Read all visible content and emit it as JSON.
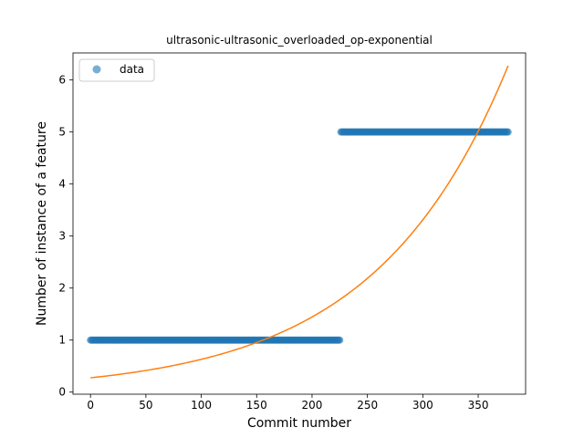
{
  "chart_data": {
    "type": "scatter",
    "title": "ultrasonic-ultrasonic_overloaded_op-exponential",
    "xlabel": "Commit number",
    "ylabel": "Number of instance of a feature",
    "xlim": [
      -15.8,
      392.8
    ],
    "ylim": [
      -0.04,
      6.52
    ],
    "xticks": [
      0,
      50,
      100,
      150,
      200,
      250,
      300,
      350
    ],
    "yticks": [
      0,
      1,
      2,
      3,
      4,
      5,
      6
    ],
    "legend": {
      "placement": "top-left",
      "entries": [
        "data"
      ]
    },
    "series": [
      {
        "name": "data",
        "kind": "points",
        "color": "#1f77b4",
        "segments": [
          {
            "x_start": 0,
            "x_end": 225,
            "y": 1
          },
          {
            "x_start": 226,
            "x_end": 377,
            "y": 5
          }
        ]
      },
      {
        "kind": "fit_line",
        "color": "#ff7f0e",
        "model": "exponential",
        "a": 0.2748,
        "b": 0.008297,
        "x_range": [
          0,
          377
        ]
      }
    ]
  }
}
